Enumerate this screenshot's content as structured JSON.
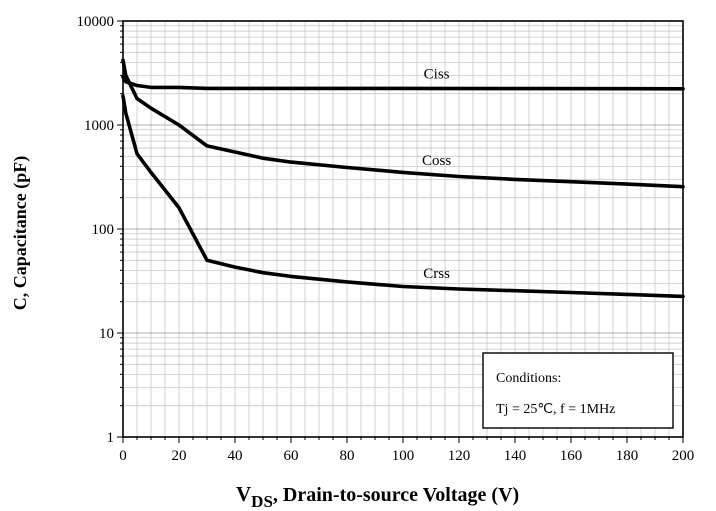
{
  "chart_data": {
    "type": "line",
    "xlabel_main": "V",
    "xlabel_sub": "DS",
    "xlabel_rest": ", Drain-to-source Voltage (V)",
    "ylabel": "C, Capacitance (pF)",
    "xlim": [
      0,
      200
    ],
    "ylim": [
      1,
      10000
    ],
    "yscale": "log",
    "grid": true,
    "xticks": [
      0,
      20,
      40,
      60,
      80,
      100,
      120,
      140,
      160,
      180,
      200
    ],
    "xtick_labels": [
      "0",
      "20",
      "40",
      "60",
      "80",
      "100",
      "120",
      "140",
      "160",
      "180",
      "200"
    ],
    "yticks": [
      1,
      10,
      100,
      1000,
      10000
    ],
    "ytick_labels": [
      "1",
      "10",
      "100",
      "1000",
      "10000"
    ],
    "series": [
      {
        "name": "Ciss",
        "x": [
          0,
          1,
          5,
          10,
          20,
          30,
          50,
          100,
          150,
          200
        ],
        "y": [
          2900,
          2600,
          2400,
          2300,
          2300,
          2250,
          2250,
          2250,
          2240,
          2230
        ]
      },
      {
        "name": "Coss",
        "x": [
          0,
          1,
          5,
          10,
          20,
          30,
          40,
          50,
          60,
          80,
          100,
          120,
          140,
          160,
          180,
          200
        ],
        "y": [
          4200,
          3000,
          1800,
          1450,
          1000,
          630,
          550,
          480,
          440,
          390,
          350,
          320,
          300,
          285,
          270,
          255
        ]
      },
      {
        "name": "Crss",
        "x": [
          0,
          1,
          5,
          10,
          20,
          30,
          40,
          50,
          60,
          80,
          100,
          120,
          140,
          160,
          180,
          200
        ],
        "y": [
          1900,
          1300,
          530,
          350,
          160,
          50,
          43,
          38,
          35,
          31,
          28,
          26.5,
          25.5,
          24.5,
          23.5,
          22.5
        ]
      }
    ],
    "annotations": {
      "conditions_title": "Conditions:",
      "conditions_text": "Tj = 25℃, f = 1MHz"
    }
  }
}
